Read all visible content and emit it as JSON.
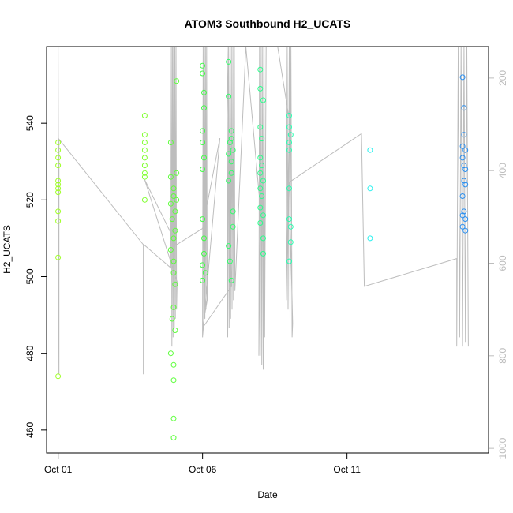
{
  "chart_data": {
    "type": "scatter",
    "title": "ATOM3 Southbound H2_UCATS",
    "xlabel": "Date",
    "ylabel": "H2_UCATS",
    "x_ticks": [
      {
        "label": "Oct 01",
        "day": 1
      },
      {
        "label": "Oct 06",
        "day": 6
      },
      {
        "label": "Oct 11",
        "day": 11
      }
    ],
    "y_ticks": [
      460,
      480,
      500,
      520,
      540
    ],
    "y_right_ticks": [
      200,
      400,
      600,
      800,
      1000
    ],
    "xlim": [
      0.6,
      15.9
    ],
    "ylim": [
      454,
      560
    ],
    "y_right_lim": [
      1010,
      132
    ],
    "grid": false,
    "line_color": "#bdbdbd",
    "points": [
      {
        "d": 1.0,
        "v": 535,
        "c": "#a0ff2a"
      },
      {
        "d": 1.0,
        "v": 533,
        "c": "#a0ff2a"
      },
      {
        "d": 1.0,
        "v": 531,
        "c": "#a0ff2a"
      },
      {
        "d": 1.0,
        "v": 529,
        "c": "#a0ff2a"
      },
      {
        "d": 1.0,
        "v": 525,
        "c": "#a0ff2a"
      },
      {
        "d": 1.0,
        "v": 524,
        "c": "#a0ff2a"
      },
      {
        "d": 1.0,
        "v": 523,
        "c": "#a0ff2a"
      },
      {
        "d": 1.0,
        "v": 522,
        "c": "#a0ff2a"
      },
      {
        "d": 1.0,
        "v": 517,
        "c": "#a0ff2a"
      },
      {
        "d": 1.0,
        "v": 514.5,
        "c": "#a0ff2a"
      },
      {
        "d": 1.0,
        "v": 505,
        "c": "#a0ff2a"
      },
      {
        "d": 1.0,
        "v": 474,
        "c": "#a0ff2a"
      },
      {
        "d": 4.0,
        "v": 542,
        "c": "#80ff30"
      },
      {
        "d": 4.0,
        "v": 537,
        "c": "#80ff30"
      },
      {
        "d": 4.0,
        "v": 535,
        "c": "#80ff30"
      },
      {
        "d": 4.0,
        "v": 533,
        "c": "#80ff30"
      },
      {
        "d": 4.0,
        "v": 531,
        "c": "#80ff30"
      },
      {
        "d": 4.0,
        "v": 529,
        "c": "#80ff30"
      },
      {
        "d": 4.0,
        "v": 527,
        "c": "#80ff30"
      },
      {
        "d": 4.0,
        "v": 526,
        "c": "#80ff30"
      },
      {
        "d": 4.0,
        "v": 520,
        "c": "#80ff30"
      },
      {
        "d": 4.9,
        "v": 535,
        "c": "#5cff3a"
      },
      {
        "d": 4.9,
        "v": 526,
        "c": "#5cff3a"
      },
      {
        "d": 5.0,
        "v": 523,
        "c": "#5cff3a"
      },
      {
        "d": 5.0,
        "v": 521,
        "c": "#5cff3a"
      },
      {
        "d": 4.9,
        "v": 519,
        "c": "#5cff3a"
      },
      {
        "d": 5.05,
        "v": 517,
        "c": "#5cff3a"
      },
      {
        "d": 4.95,
        "v": 515,
        "c": "#5cff3a"
      },
      {
        "d": 5.05,
        "v": 512,
        "c": "#5cff3a"
      },
      {
        "d": 5.0,
        "v": 510,
        "c": "#5cff3a"
      },
      {
        "d": 4.9,
        "v": 507,
        "c": "#5cff3a"
      },
      {
        "d": 5.0,
        "v": 504,
        "c": "#5cff3a"
      },
      {
        "d": 5.0,
        "v": 501,
        "c": "#5cff3a"
      },
      {
        "d": 5.05,
        "v": 498,
        "c": "#5cff3a"
      },
      {
        "d": 5.0,
        "v": 492,
        "c": "#5cff3a"
      },
      {
        "d": 4.95,
        "v": 489,
        "c": "#5cff3a"
      },
      {
        "d": 5.05,
        "v": 486,
        "c": "#5cff3a"
      },
      {
        "d": 4.9,
        "v": 480,
        "c": "#5cff3a"
      },
      {
        "d": 5.0,
        "v": 477,
        "c": "#5cff3a"
      },
      {
        "d": 5.0,
        "v": 473,
        "c": "#5cff3a"
      },
      {
        "d": 5.0,
        "v": 463,
        "c": "#5cff3a"
      },
      {
        "d": 5.0,
        "v": 458,
        "c": "#5cff3a"
      },
      {
        "d": 5.1,
        "v": 551,
        "c": "#5cff3a"
      },
      {
        "d": 5.1,
        "v": 527,
        "c": "#5cff3a"
      },
      {
        "d": 5.1,
        "v": 520,
        "c": "#5cff3a"
      },
      {
        "d": 6.0,
        "v": 555,
        "c": "#40ff46"
      },
      {
        "d": 6.0,
        "v": 553,
        "c": "#40ff46"
      },
      {
        "d": 6.05,
        "v": 548,
        "c": "#40ff46"
      },
      {
        "d": 6.05,
        "v": 544,
        "c": "#40ff46"
      },
      {
        "d": 6.0,
        "v": 538,
        "c": "#40ff46"
      },
      {
        "d": 6.0,
        "v": 535,
        "c": "#40ff46"
      },
      {
        "d": 6.05,
        "v": 531,
        "c": "#40ff46"
      },
      {
        "d": 6.0,
        "v": 528,
        "c": "#40ff46"
      },
      {
        "d": 6.0,
        "v": 515,
        "c": "#40ff46"
      },
      {
        "d": 6.05,
        "v": 510,
        "c": "#40ff46"
      },
      {
        "d": 6.05,
        "v": 506,
        "c": "#40ff46"
      },
      {
        "d": 6.0,
        "v": 503,
        "c": "#40ff46"
      },
      {
        "d": 6.1,
        "v": 501,
        "c": "#40ff46"
      },
      {
        "d": 6.0,
        "v": 499,
        "c": "#40ff46"
      },
      {
        "d": 6.9,
        "v": 556,
        "c": "#30ff6a"
      },
      {
        "d": 6.9,
        "v": 547,
        "c": "#30ff6a"
      },
      {
        "d": 7.0,
        "v": 538,
        "c": "#30ff6a"
      },
      {
        "d": 7.0,
        "v": 536,
        "c": "#30ff6a"
      },
      {
        "d": 6.95,
        "v": 535,
        "c": "#30ff6a"
      },
      {
        "d": 7.05,
        "v": 533,
        "c": "#30ff6a"
      },
      {
        "d": 6.9,
        "v": 532,
        "c": "#30ff6a"
      },
      {
        "d": 7.0,
        "v": 530,
        "c": "#30ff6a"
      },
      {
        "d": 7.0,
        "v": 527,
        "c": "#30ff6a"
      },
      {
        "d": 6.9,
        "v": 525,
        "c": "#30ff6a"
      },
      {
        "d": 7.05,
        "v": 517,
        "c": "#30ff6a"
      },
      {
        "d": 7.05,
        "v": 513,
        "c": "#30ff6a"
      },
      {
        "d": 6.9,
        "v": 508,
        "c": "#30ff6a"
      },
      {
        "d": 6.95,
        "v": 504,
        "c": "#30ff6a"
      },
      {
        "d": 7.0,
        "v": 499,
        "c": "#30ff6a"
      },
      {
        "d": 8.0,
        "v": 554,
        "c": "#2aff8c"
      },
      {
        "d": 8.0,
        "v": 549,
        "c": "#2aff8c"
      },
      {
        "d": 8.1,
        "v": 546,
        "c": "#2aff8c"
      },
      {
        "d": 8.0,
        "v": 539,
        "c": "#2aff8c"
      },
      {
        "d": 8.05,
        "v": 536,
        "c": "#2aff8c"
      },
      {
        "d": 8.0,
        "v": 531,
        "c": "#2aff8c"
      },
      {
        "d": 8.05,
        "v": 529,
        "c": "#2aff8c"
      },
      {
        "d": 8.0,
        "v": 527,
        "c": "#2aff8c"
      },
      {
        "d": 8.1,
        "v": 525,
        "c": "#2aff8c"
      },
      {
        "d": 8.0,
        "v": 523,
        "c": "#2aff8c"
      },
      {
        "d": 8.05,
        "v": 521,
        "c": "#2aff8c"
      },
      {
        "d": 8.0,
        "v": 518,
        "c": "#2aff8c"
      },
      {
        "d": 8.1,
        "v": 516,
        "c": "#2aff8c"
      },
      {
        "d": 8.0,
        "v": 514,
        "c": "#2aff8c"
      },
      {
        "d": 8.1,
        "v": 510,
        "c": "#2aff8c"
      },
      {
        "d": 8.1,
        "v": 506,
        "c": "#2aff8c"
      },
      {
        "d": 9.0,
        "v": 542,
        "c": "#28ffb0"
      },
      {
        "d": 9.0,
        "v": 539,
        "c": "#28ffb0"
      },
      {
        "d": 9.05,
        "v": 537,
        "c": "#28ffb0"
      },
      {
        "d": 9.0,
        "v": 535,
        "c": "#28ffb0"
      },
      {
        "d": 9.0,
        "v": 533,
        "c": "#28ffb0"
      },
      {
        "d": 9.0,
        "v": 523,
        "c": "#28ffb0"
      },
      {
        "d": 9.0,
        "v": 515,
        "c": "#28ffb0"
      },
      {
        "d": 9.05,
        "v": 513,
        "c": "#28ffb0"
      },
      {
        "d": 9.05,
        "v": 509,
        "c": "#28ffb0"
      },
      {
        "d": 9.0,
        "v": 504,
        "c": "#28ffb0"
      },
      {
        "d": 11.8,
        "v": 533,
        "c": "#28f0ee"
      },
      {
        "d": 11.8,
        "v": 523,
        "c": "#28f0ee"
      },
      {
        "d": 11.8,
        "v": 510,
        "c": "#28f0ee"
      },
      {
        "d": 15.0,
        "v": 552,
        "c": "#2a8ff0"
      },
      {
        "d": 15.05,
        "v": 544,
        "c": "#2a8ff0"
      },
      {
        "d": 15.05,
        "v": 537,
        "c": "#2a8ff0"
      },
      {
        "d": 15.0,
        "v": 534,
        "c": "#2a8ff0"
      },
      {
        "d": 15.1,
        "v": 533,
        "c": "#2a8ff0"
      },
      {
        "d": 15.0,
        "v": 531,
        "c": "#2a8ff0"
      },
      {
        "d": 15.05,
        "v": 529,
        "c": "#2a8ff0"
      },
      {
        "d": 15.1,
        "v": 528,
        "c": "#2a8ff0"
      },
      {
        "d": 15.05,
        "v": 525,
        "c": "#2a8ff0"
      },
      {
        "d": 15.1,
        "v": 524,
        "c": "#2a8ff0"
      },
      {
        "d": 15.0,
        "v": 521,
        "c": "#2a8ff0"
      },
      {
        "d": 15.05,
        "v": 517,
        "c": "#2a8ff0"
      },
      {
        "d": 15.0,
        "v": 516,
        "c": "#2a8ff0"
      },
      {
        "d": 15.1,
        "v": 515,
        "c": "#2a8ff0"
      },
      {
        "d": 15.0,
        "v": 513,
        "c": "#2a8ff0"
      },
      {
        "d": 15.1,
        "v": 512,
        "c": "#2a8ff0"
      }
    ],
    "altitude_track": [
      {
        "d": 1.0,
        "a": 840
      },
      {
        "d": 1.0,
        "a": 130
      },
      {
        "d": 1.03,
        "a": 840
      },
      {
        "d": 1.03,
        "a": 332
      },
      {
        "d": 3.95,
        "a": 560
      },
      {
        "d": 3.95,
        "a": 840
      },
      {
        "d": 3.97,
        "a": 560
      },
      {
        "d": 4.9,
        "a": 610
      },
      {
        "d": 4.92,
        "a": 130
      },
      {
        "d": 4.94,
        "a": 780
      },
      {
        "d": 4.96,
        "a": 130
      },
      {
        "d": 4.98,
        "a": 760
      },
      {
        "d": 5.0,
        "a": 130
      },
      {
        "d": 5.02,
        "a": 740
      },
      {
        "d": 5.04,
        "a": 130
      },
      {
        "d": 5.06,
        "a": 720
      },
      {
        "d": 5.08,
        "a": 130
      },
      {
        "d": 5.1,
        "a": 700
      },
      {
        "d": 5.12,
        "a": 640
      },
      {
        "d": 4.0,
        "a": 420
      },
      {
        "d": 5.1,
        "a": 560
      },
      {
        "d": 6.0,
        "a": 525
      },
      {
        "d": 6.6,
        "a": 330
      },
      {
        "d": 6.0,
        "a": 760
      },
      {
        "d": 6.02,
        "a": 130
      },
      {
        "d": 6.04,
        "a": 740
      },
      {
        "d": 6.06,
        "a": 130
      },
      {
        "d": 6.08,
        "a": 720
      },
      {
        "d": 6.1,
        "a": 130
      },
      {
        "d": 6.12,
        "a": 700
      },
      {
        "d": 6.14,
        "a": 130
      },
      {
        "d": 6.16,
        "a": 680
      },
      {
        "d": 6.0,
        "a": 740
      },
      {
        "d": 7.0,
        "a": 650
      },
      {
        "d": 6.85,
        "a": 130
      },
      {
        "d": 6.87,
        "a": 760
      },
      {
        "d": 6.9,
        "a": 130
      },
      {
        "d": 6.92,
        "a": 740
      },
      {
        "d": 6.95,
        "a": 130
      },
      {
        "d": 6.97,
        "a": 720
      },
      {
        "d": 7.0,
        "a": 130
      },
      {
        "d": 7.02,
        "a": 700
      },
      {
        "d": 7.05,
        "a": 130
      },
      {
        "d": 7.07,
        "a": 680
      },
      {
        "d": 7.1,
        "a": 130
      },
      {
        "d": 7.12,
        "a": 660
      },
      {
        "d": 7.5,
        "a": 130
      },
      {
        "d": 8.0,
        "a": 480
      },
      {
        "d": 7.95,
        "a": 800
      },
      {
        "d": 7.97,
        "a": 130
      },
      {
        "d": 8.0,
        "a": 800
      },
      {
        "d": 8.03,
        "a": 130
      },
      {
        "d": 8.05,
        "a": 820
      },
      {
        "d": 8.08,
        "a": 130
      },
      {
        "d": 8.1,
        "a": 830
      },
      {
        "d": 8.13,
        "a": 130
      },
      {
        "d": 8.15,
        "a": 760
      },
      {
        "d": 8.2,
        "a": 130
      },
      {
        "d": 8.6,
        "a": 130
      },
      {
        "d": 9.0,
        "a": 290
      },
      {
        "d": 8.9,
        "a": 680
      },
      {
        "d": 8.93,
        "a": 130
      },
      {
        "d": 8.96,
        "a": 700
      },
      {
        "d": 9.0,
        "a": 130
      },
      {
        "d": 9.03,
        "a": 720
      },
      {
        "d": 9.06,
        "a": 130
      },
      {
        "d": 9.1,
        "a": 760
      },
      {
        "d": 9.12,
        "a": 730
      },
      {
        "d": 9.0,
        "a": 425
      },
      {
        "d": 11.5,
        "a": 320
      },
      {
        "d": 11.6,
        "a": 650
      },
      {
        "d": 14.8,
        "a": 590
      },
      {
        "d": 14.8,
        "a": 780
      },
      {
        "d": 14.85,
        "a": 130
      },
      {
        "d": 14.9,
        "a": 760
      },
      {
        "d": 14.95,
        "a": 130
      },
      {
        "d": 15.0,
        "a": 780
      },
      {
        "d": 15.05,
        "a": 130
      },
      {
        "d": 15.1,
        "a": 770
      },
      {
        "d": 15.15,
        "a": 130
      },
      {
        "d": 15.2,
        "a": 780
      }
    ]
  }
}
